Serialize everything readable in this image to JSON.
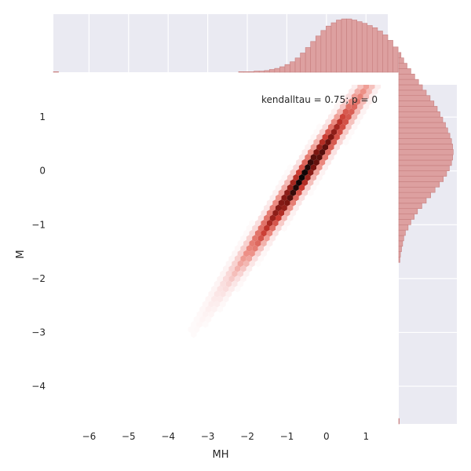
{
  "chart_data": {
    "type": "hexbin",
    "annotation": "kendalltau = 0.75; p = 0",
    "xlabel": "MH",
    "ylabel": "M",
    "xlim": [
      -6.9,
      1.55
    ],
    "ylim": [
      -4.7,
      1.6
    ],
    "xticks": [
      -6,
      -5,
      -4,
      -3,
      -2,
      -1,
      0,
      1
    ],
    "yticks": [
      -4,
      -3,
      -2,
      -1,
      0,
      1
    ],
    "xtick_labels": [
      "−6",
      "−5",
      "−4",
      "−3",
      "−2",
      "−1",
      "0",
      "1"
    ],
    "ytick_labels": [
      "−4",
      "−3",
      "−2",
      "−1",
      "0",
      "1"
    ],
    "joint_distribution": {
      "relation": "M ≈ 0.5 + 1.02·MH",
      "x_center": -0.55,
      "x_sd": 0.75,
      "residual_sd": 0.13
    },
    "marginal_x_hist": {
      "bin_edges_start": -6.9,
      "bin_width": 0.13,
      "relative_counts": [
        0.01,
        0,
        0,
        0,
        0,
        0,
        0,
        0,
        0,
        0,
        0,
        0,
        0,
        0,
        0,
        0,
        0,
        0,
        0,
        0,
        0,
        0,
        0,
        0,
        0,
        0,
        0,
        0,
        0,
        0,
        0,
        0,
        0,
        0,
        0,
        0,
        0.01,
        0.01,
        0.01,
        0.02,
        0.02,
        0.03,
        0.05,
        0.07,
        0.1,
        0.14,
        0.19,
        0.26,
        0.35,
        0.45,
        0.56,
        0.66,
        0.76,
        0.84,
        0.9,
        0.95,
        0.97,
        0.97,
        0.95,
        0.92,
        0.89,
        0.85,
        0.81,
        0.75,
        0.68,
        0.58,
        0.46
      ]
    },
    "marginal_y_hist": {
      "bin_edges_start": -4.7,
      "bin_width": 0.1,
      "relative_counts": [
        0.01,
        0,
        0,
        0,
        0,
        0,
        0,
        0,
        0,
        0,
        0,
        0,
        0,
        0,
        0,
        0,
        0,
        0,
        0,
        0,
        0,
        0,
        0,
        0,
        0,
        0,
        0,
        0,
        0,
        0,
        0.02,
        0.03,
        0.05,
        0.07,
        0.09,
        0.12,
        0.17,
        0.22,
        0.28,
        0.34,
        0.42,
        0.5,
        0.58,
        0.66,
        0.74,
        0.81,
        0.87,
        0.92,
        0.96,
        0.98,
        0.99,
        0.98,
        0.96,
        0.93,
        0.89,
        0.85,
        0.8,
        0.75,
        0.7,
        0.64,
        0.57,
        0.5,
        0.43,
        0.36,
        0.29,
        0.22,
        0.15,
        0.09,
        0.04
      ]
    },
    "colors": {
      "hex_max": "#000000",
      "hex_mid": "#c0392b",
      "hex_low": "#f7dede",
      "marginal_fill": "#dda0a0",
      "marginal_edge": "#c77e7e",
      "panel_bg": "#eaeaf2",
      "grid": "#ffffff"
    }
  }
}
